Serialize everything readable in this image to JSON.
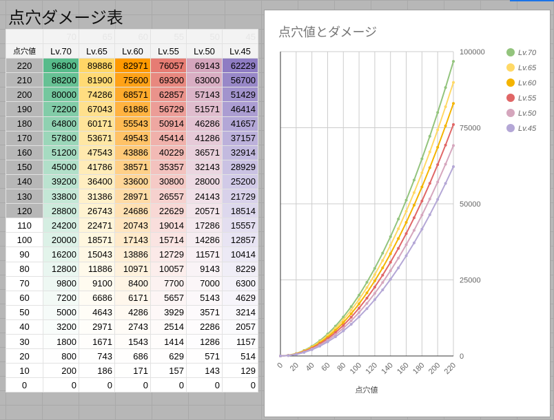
{
  "sheet": {
    "title": "点穴ダメージ表",
    "faint_header": [
      "70",
      "65",
      "60",
      "55",
      "50",
      "45"
    ],
    "row_header_label": "点穴値",
    "column_colors": [
      "#57bb8a",
      "#ffd666",
      "#ff9900",
      "#e67c73",
      "#d5a6bd",
      "#8e7cc3"
    ]
  },
  "chart_data": {
    "type": "line",
    "title": "点穴値とダメージ",
    "xlabel": "点穴値",
    "ylabel": "",
    "x": [
      220,
      210,
      200,
      190,
      180,
      170,
      160,
      150,
      140,
      130,
      120,
      110,
      100,
      90,
      80,
      70,
      60,
      50,
      40,
      30,
      20,
      10,
      0
    ],
    "xlim": [
      0,
      220
    ],
    "ylim": [
      0,
      100000
    ],
    "xticks": [
      0,
      20,
      40,
      60,
      80,
      100,
      120,
      140,
      160,
      180,
      200,
      220
    ],
    "yticks": [
      0,
      25000,
      50000,
      75000,
      100000
    ],
    "grid": true,
    "legend": "right",
    "y_axis_side": "right",
    "x_tick_rotation": "-45deg",
    "series": [
      {
        "name": "Lv.70",
        "color": "#93c47d",
        "values": [
          96800,
          88200,
          80000,
          72200,
          64800,
          57800,
          51200,
          45000,
          39200,
          33800,
          28800,
          24200,
          20000,
          16200,
          12800,
          9800,
          7200,
          5000,
          3200,
          1800,
          800,
          200,
          0
        ]
      },
      {
        "name": "Lv.65",
        "color": "#ffd966",
        "values": [
          89886,
          81900,
          74286,
          67043,
          60171,
          53671,
          47543,
          41786,
          36400,
          31386,
          26743,
          22471,
          18571,
          15043,
          11886,
          9100,
          6686,
          4643,
          2971,
          1671,
          743,
          186,
          0
        ]
      },
      {
        "name": "Lv.60",
        "color": "#f4b400",
        "values": [
          82971,
          75600,
          68571,
          61886,
          55543,
          49543,
          43886,
          38571,
          33600,
          28971,
          24686,
          20743,
          17143,
          13886,
          10971,
          8400,
          6171,
          4286,
          2743,
          1543,
          686,
          171,
          0
        ]
      },
      {
        "name": "Lv.55",
        "color": "#e06666",
        "values": [
          76057,
          69300,
          62857,
          56729,
          50914,
          45414,
          40229,
          35357,
          30800,
          26557,
          22629,
          19014,
          15714,
          12729,
          10057,
          7700,
          5657,
          3929,
          2514,
          1414,
          629,
          157,
          0
        ]
      },
      {
        "name": "Lv.50",
        "color": "#d5a6bd",
        "values": [
          69143,
          63000,
          57143,
          51571,
          46286,
          41286,
          36571,
          32143,
          28000,
          24143,
          20571,
          17286,
          14286,
          11571,
          9143,
          7000,
          5143,
          3571,
          2286,
          1286,
          571,
          143,
          0
        ]
      },
      {
        "name": "Lv.45",
        "color": "#b4a7d6",
        "values": [
          62229,
          56700,
          51429,
          46414,
          41657,
          37157,
          32914,
          28929,
          25200,
          21729,
          18514,
          15557,
          12857,
          10414,
          8229,
          6300,
          4629,
          3214,
          2057,
          1157,
          514,
          129,
          0
        ]
      }
    ]
  }
}
